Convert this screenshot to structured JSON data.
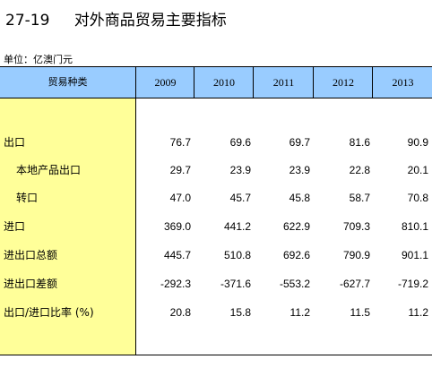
{
  "title": {
    "number": "27-19",
    "text": "对外商品贸易主要指标"
  },
  "unit": "单位：亿澳门元",
  "table": {
    "header_label": "贸易种类",
    "years": [
      "2009",
      "2010",
      "2011",
      "2012",
      "2013"
    ],
    "rows": [
      {
        "label": "出口",
        "values": [
          "76.7",
          "69.6",
          "69.7",
          "81.6",
          "90.9"
        ]
      },
      {
        "label": "本地产品出口",
        "values": [
          "29.7",
          "23.9",
          "23.9",
          "22.8",
          "20.1"
        ]
      },
      {
        "label": "转口",
        "values": [
          "47.0",
          "45.7",
          "45.8",
          "58.7",
          "70.8"
        ]
      },
      {
        "label": "进口",
        "values": [
          "369.0",
          "441.2",
          "622.9",
          "709.3",
          "810.1"
        ]
      },
      {
        "label": "进出口总额",
        "values": [
          "445.7",
          "510.8",
          "692.6",
          "790.9",
          "901.1"
        ]
      },
      {
        "label": "进出口差额",
        "values": [
          "-292.3",
          "-371.6",
          "-553.2",
          "-627.7",
          "-719.2"
        ]
      },
      {
        "label": "出口/进口比率 (%)",
        "values": [
          "20.8",
          "15.8",
          "11.2",
          "11.5",
          "11.2"
        ]
      }
    ]
  }
}
